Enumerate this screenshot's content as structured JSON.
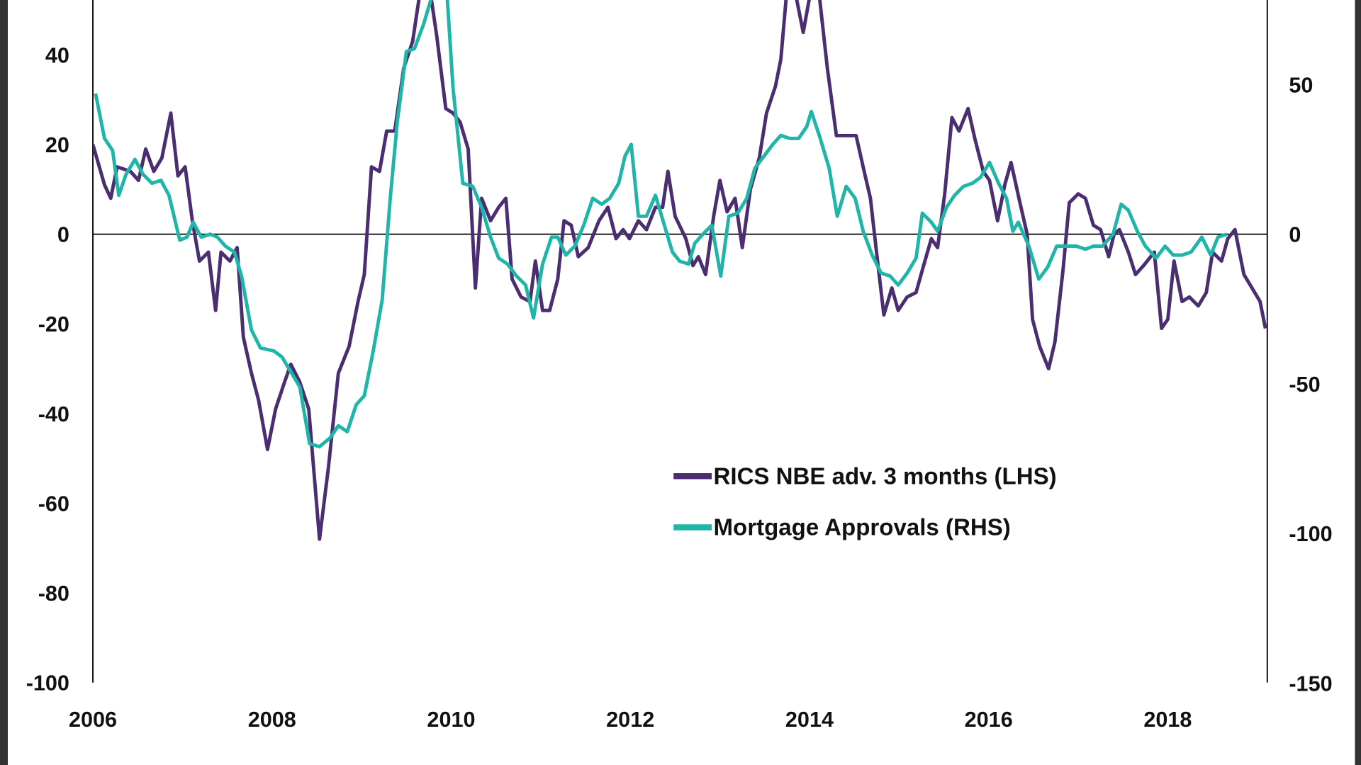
{
  "chart_data": {
    "type": "line",
    "xlim": [
      2006,
      2019.1
    ],
    "x_ticks": [
      "2006",
      "2008",
      "2010",
      "2012",
      "2014",
      "2016",
      "2018"
    ],
    "y_left": {
      "lim": [
        -100,
        52
      ],
      "ticks": [
        "40",
        "20",
        "0",
        "-20",
        "-40",
        "-60",
        "-80",
        "-100"
      ]
    },
    "y_right": {
      "lim": [
        -150,
        78
      ],
      "ticks": [
        "50",
        "0",
        "-50",
        "-100",
        "-150"
      ]
    },
    "grid": false,
    "legend_position": "bottom-center",
    "series": [
      {
        "name": "RICS NBE adv. 3 months (LHS)",
        "axis": "left",
        "color": "#4b2d72",
        "x": [
          2006.0,
          2006.13,
          2006.2,
          2006.27,
          2006.42,
          2006.51,
          2006.59,
          2006.68,
          2006.77,
          2006.87,
          2006.95,
          2007.03,
          2007.11,
          2007.19,
          2007.29,
          2007.37,
          2007.43,
          2007.53,
          2007.61,
          2007.68,
          2007.77,
          2007.85,
          2007.95,
          2008.04,
          2008.14,
          2008.21,
          2008.31,
          2008.41,
          2008.53,
          2008.63,
          2008.74,
          2008.86,
          2008.96,
          2009.03,
          2009.11,
          2009.2,
          2009.28,
          2009.37,
          2009.47,
          2009.57,
          2009.66,
          2009.76,
          2009.84,
          2009.94,
          2010.02,
          2010.1,
          2010.19,
          2010.27,
          2010.34,
          2010.44,
          2010.53,
          2010.61,
          2010.68,
          2010.78,
          2010.88,
          2010.94,
          2011.02,
          2011.1,
          2011.19,
          2011.26,
          2011.34,
          2011.42,
          2011.53,
          2011.65,
          2011.75,
          2011.84,
          2011.92,
          2011.99,
          2012.09,
          2012.18,
          2012.28,
          2012.36,
          2012.42,
          2012.5,
          2012.62,
          2012.7,
          2012.76,
          2012.84,
          2012.93,
          2013.0,
          2013.08,
          2013.17,
          2013.25,
          2013.34,
          2013.44,
          2013.52,
          2013.62,
          2013.68,
          2013.75,
          2013.83,
          2013.93,
          2014.02,
          2014.1,
          2014.2,
          2014.3,
          2014.39,
          2014.52,
          2014.61,
          2014.68,
          2014.76,
          2014.83,
          2014.92,
          2014.99,
          2015.09,
          2015.19,
          2015.26,
          2015.36,
          2015.43,
          2015.51,
          2015.59,
          2015.67,
          2015.77,
          2015.85,
          2015.94,
          2016.01,
          2016.1,
          2016.18,
          2016.25,
          2016.35,
          2016.43,
          2016.49,
          2016.57,
          2016.67,
          2016.74,
          2016.83,
          2016.9,
          2017.0,
          2017.08,
          2017.17,
          2017.25,
          2017.34,
          2017.4,
          2017.46,
          2017.56,
          2017.64,
          2017.73,
          2017.85,
          2017.93,
          2018.0,
          2018.07,
          2018.16,
          2018.24,
          2018.34,
          2018.43,
          2018.5,
          2018.6,
          2018.67,
          2018.75,
          2018.85,
          2018.97,
          2019.03,
          2019.09
        ],
        "y": [
          20,
          11,
          8,
          15,
          14,
          12,
          19,
          14,
          17,
          27,
          13,
          15,
          3,
          -6,
          -4,
          -17,
          -4,
          -6,
          -3,
          -23,
          -31,
          -37,
          -48,
          -39,
          -33,
          -29,
          -33,
          -39,
          -68,
          -52,
          -31,
          -25,
          -15,
          -9,
          15,
          14,
          23,
          23,
          37,
          43,
          55,
          55,
          44,
          28,
          27,
          25,
          19,
          -12,
          8,
          3,
          6,
          8,
          -10,
          -14,
          -15,
          -6,
          -17,
          -17,
          -10,
          3,
          2,
          -5,
          -3,
          3,
          6,
          -1,
          1,
          -1,
          3,
          1,
          6,
          6,
          14,
          4,
          -1,
          -7,
          -5,
          -9,
          4,
          12,
          5,
          8,
          -3,
          10,
          17,
          27,
          33,
          39,
          55,
          55,
          45,
          55,
          55,
          37,
          22,
          22,
          22,
          14,
          8,
          -6,
          -18,
          -12,
          -17,
          -14,
          -13,
          -8,
          -1,
          -3,
          9,
          26,
          23,
          28,
          21,
          14,
          12,
          3,
          11,
          16,
          7,
          0,
          -19,
          -25,
          -30,
          -24,
          -8,
          7,
          9,
          8,
          2,
          1,
          -5,
          0,
          1,
          -4,
          -9,
          -7,
          -4,
          -21,
          -19,
          -6,
          -15,
          -14,
          -16,
          -13,
          -4,
          -6,
          -1,
          1,
          -9,
          -13,
          -15,
          -21
        ]
      },
      {
        "name": "Mortgage Approvals (RHS)",
        "axis": "right",
        "color": "#1fb5a8",
        "x": [
          2006.03,
          2006.13,
          2006.22,
          2006.29,
          2006.37,
          2006.47,
          2006.56,
          2006.66,
          2006.76,
          2006.85,
          2006.97,
          2007.05,
          2007.12,
          2007.21,
          2007.31,
          2007.39,
          2007.48,
          2007.58,
          2007.66,
          2007.77,
          2007.87,
          2008.02,
          2008.11,
          2008.21,
          2008.31,
          2008.42,
          2008.53,
          2008.65,
          2008.74,
          2008.84,
          2008.94,
          2009.03,
          2009.13,
          2009.23,
          2009.32,
          2009.4,
          2009.5,
          2009.59,
          2009.69,
          2009.81,
          2009.95,
          2010.02,
          2010.13,
          2010.24,
          2010.34,
          2010.44,
          2010.53,
          2010.63,
          2010.73,
          2010.83,
          2010.92,
          2011.02,
          2011.12,
          2011.19,
          2011.28,
          2011.38,
          2011.48,
          2011.58,
          2011.68,
          2011.77,
          2011.87,
          2011.94,
          2012.01,
          2012.09,
          2012.18,
          2012.28,
          2012.38,
          2012.47,
          2012.55,
          2012.65,
          2012.72,
          2012.81,
          2012.91,
          2013.01,
          2013.1,
          2013.2,
          2013.3,
          2013.39,
          2013.49,
          2013.59,
          2013.68,
          2013.78,
          2013.88,
          2013.97,
          2014.02,
          2014.12,
          2014.22,
          2014.31,
          2014.41,
          2014.51,
          2014.6,
          2014.7,
          2014.8,
          2014.9,
          2014.99,
          2015.09,
          2015.19,
          2015.26,
          2015.36,
          2015.43,
          2015.53,
          2015.62,
          2015.72,
          2015.82,
          2015.91,
          2016.01,
          2016.11,
          2016.2,
          2016.27,
          2016.33,
          2016.45,
          2016.56,
          2016.66,
          2016.76,
          2016.86,
          2016.98,
          2017.08,
          2017.17,
          2017.27,
          2017.39,
          2017.48,
          2017.56,
          2017.66,
          2017.75,
          2017.87,
          2017.97,
          2018.06,
          2018.16,
          2018.26,
          2018.38,
          2018.48,
          2018.56,
          2018.66
        ],
        "y": [
          47,
          32,
          28,
          13,
          20,
          25,
          20,
          17,
          18,
          13,
          -2,
          -1,
          4,
          -1,
          0,
          -1,
          -4,
          -6,
          -14,
          -32,
          -38,
          -39,
          -41,
          -46,
          -51,
          -70,
          -71,
          -68,
          -64,
          -66,
          -57,
          -54,
          -39,
          -22,
          12,
          38,
          61,
          62,
          70,
          82,
          82,
          49,
          17,
          16,
          9,
          -1,
          -8,
          -10,
          -14,
          -17,
          -28,
          -10,
          -1,
          -1,
          -7,
          -4,
          3,
          12,
          10,
          12,
          17,
          26,
          30,
          6,
          6,
          13,
          3,
          -6,
          -9,
          -10,
          -3,
          0,
          3,
          -14,
          6,
          7,
          12,
          22,
          26,
          30,
          33,
          32,
          32,
          36,
          41,
          32,
          22,
          6,
          16,
          12,
          1,
          -7,
          -13,
          -14,
          -17,
          -13,
          -8,
          7,
          4,
          1,
          9,
          13,
          16,
          17,
          19,
          24,
          17,
          12,
          1,
          4,
          -4,
          -15,
          -11,
          -4,
          -4,
          -4,
          -5,
          -4,
          -4,
          0,
          10,
          8,
          1,
          -4,
          -8,
          -4,
          -7,
          -7,
          -6,
          -1,
          -7,
          -1,
          0
        ]
      }
    ]
  }
}
